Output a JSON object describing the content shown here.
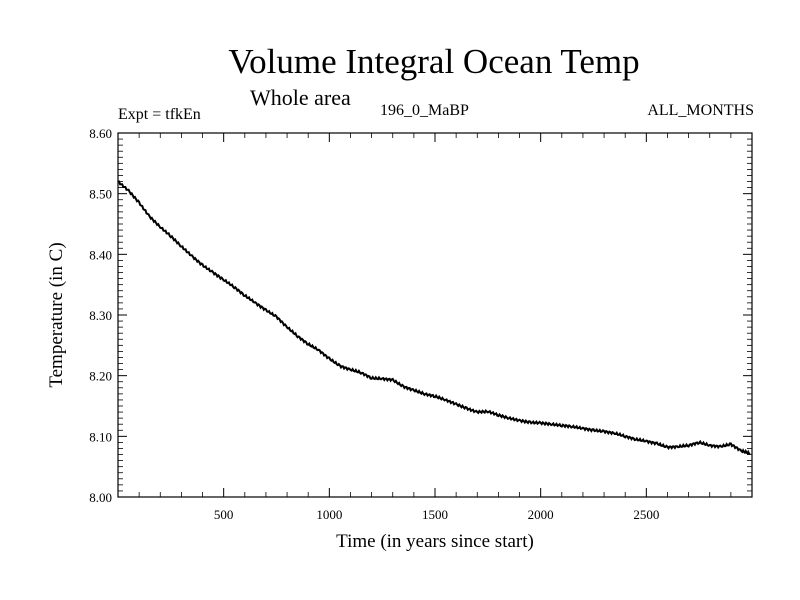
{
  "header": {
    "title": "Volume Integral Ocean Temp",
    "subtitle": "Whole area",
    "expt": "Expt = tfkEn",
    "run": "196_0_MaBP",
    "months": "ALL_MONTHS"
  },
  "chart_data": {
    "type": "line",
    "title": "Volume Integral Ocean Temp",
    "subtitle": "Whole area",
    "xlabel": "Time (in years since start)",
    "ylabel": "Temperature (in C)",
    "xlim": [
      0,
      3000
    ],
    "ylim": [
      8.0,
      8.6
    ],
    "xticks": [
      500,
      1000,
      1500,
      2000,
      2500
    ],
    "xtick_labels": [
      "500",
      "1000",
      "1500",
      "2000",
      "2500"
    ],
    "yticks": [
      8.0,
      8.1,
      8.2,
      8.3,
      8.4,
      8.5,
      8.6
    ],
    "ytick_labels": [
      "8.00",
      "8.10",
      "8.20",
      "8.30",
      "8.40",
      "8.50",
      "8.60"
    ],
    "grid": false,
    "legend": "none",
    "line_color": "#000000",
    "series": [
      {
        "x": [
          0,
          50,
          100,
          150,
          200,
          250,
          300,
          350,
          400,
          450,
          500,
          550,
          600,
          650,
          700,
          750,
          800,
          850,
          900,
          950,
          1000,
          1050,
          1100,
          1150,
          1200,
          1250,
          1300,
          1350,
          1400,
          1450,
          1500,
          1550,
          1600,
          1650,
          1700,
          1750,
          1800,
          1850,
          1900,
          1950,
          2000,
          2050,
          2100,
          2150,
          2200,
          2250,
          2300,
          2350,
          2400,
          2450,
          2500,
          2550,
          2600,
          2650,
          2700,
          2750,
          2800,
          2850,
          2900,
          2950,
          2990
        ],
        "values": [
          8.52,
          8.505,
          8.485,
          8.462,
          8.445,
          8.43,
          8.413,
          8.397,
          8.382,
          8.37,
          8.358,
          8.346,
          8.332,
          8.32,
          8.308,
          8.297,
          8.28,
          8.265,
          8.252,
          8.242,
          8.228,
          8.216,
          8.21,
          8.205,
          8.196,
          8.195,
          8.193,
          8.182,
          8.176,
          8.17,
          8.166,
          8.16,
          8.153,
          8.146,
          8.14,
          8.141,
          8.135,
          8.13,
          8.126,
          8.123,
          8.122,
          8.12,
          8.118,
          8.116,
          8.113,
          8.11,
          8.108,
          8.105,
          8.1,
          8.095,
          8.092,
          8.088,
          8.082,
          8.083,
          8.085,
          8.09,
          8.085,
          8.083,
          8.087,
          8.076,
          8.072
        ]
      }
    ]
  }
}
